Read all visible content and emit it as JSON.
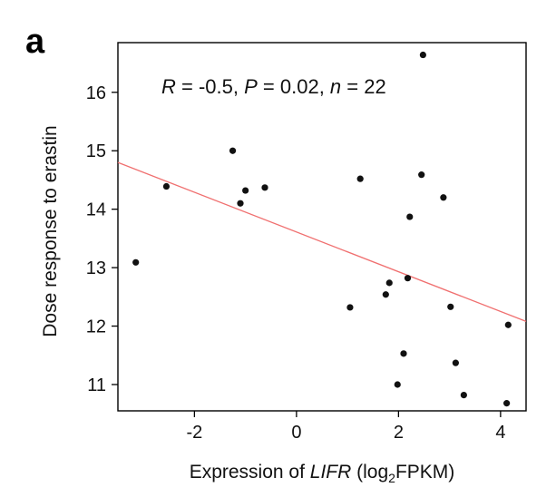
{
  "panel_label": "a",
  "annotation": {
    "r_sym": "R",
    "r_val": " = -0.5, ",
    "p_sym": "P",
    "p_val": " = 0.02, ",
    "n_sym": "n",
    "n_val": " = 22"
  },
  "axes": {
    "xlabel_pre": "Expression of ",
    "xlabel_gene": "LIFR",
    "xlabel_open": " (log",
    "xlabel_sub": "2",
    "xlabel_post": "FPKM)",
    "ylabel": "Dose response to erastin"
  },
  "colors": {
    "points": "#111111",
    "fit_line": "#f07070",
    "frame": "#000000"
  },
  "chart_data": {
    "type": "scatter",
    "xlim": [
      -3.5,
      4.5
    ],
    "ylim": [
      10.55,
      16.85
    ],
    "x_ticks": [
      -2,
      0,
      2,
      4
    ],
    "x_tick_labels": [
      "-2",
      "0",
      "2",
      "4"
    ],
    "y_ticks": [
      11,
      12,
      13,
      14,
      15,
      16
    ],
    "y_tick_labels": [
      "11",
      "12",
      "13",
      "14",
      "15",
      "16"
    ],
    "grid": false,
    "points": [
      {
        "x": -3.15,
        "y": 13.09
      },
      {
        "x": -2.55,
        "y": 14.39
      },
      {
        "x": -1.25,
        "y": 15.0
      },
      {
        "x": -1.1,
        "y": 14.1
      },
      {
        "x": -1.0,
        "y": 14.32
      },
      {
        "x": -0.62,
        "y": 14.37
      },
      {
        "x": 1.05,
        "y": 12.32
      },
      {
        "x": 1.25,
        "y": 14.52
      },
      {
        "x": 1.75,
        "y": 12.54
      },
      {
        "x": 1.82,
        "y": 12.74
      },
      {
        "x": 1.98,
        "y": 11.0
      },
      {
        "x": 2.1,
        "y": 11.53
      },
      {
        "x": 2.18,
        "y": 12.82
      },
      {
        "x": 2.22,
        "y": 13.87
      },
      {
        "x": 2.45,
        "y": 14.59
      },
      {
        "x": 2.48,
        "y": 16.64
      },
      {
        "x": 2.88,
        "y": 14.2
      },
      {
        "x": 3.02,
        "y": 12.33
      },
      {
        "x": 3.12,
        "y": 11.37
      },
      {
        "x": 3.28,
        "y": 10.82
      },
      {
        "x": 4.12,
        "y": 10.68
      },
      {
        "x": 4.15,
        "y": 12.02
      }
    ],
    "fit_line": {
      "x": [
        -3.5,
        4.5
      ],
      "y": [
        14.8,
        12.08
      ]
    }
  }
}
